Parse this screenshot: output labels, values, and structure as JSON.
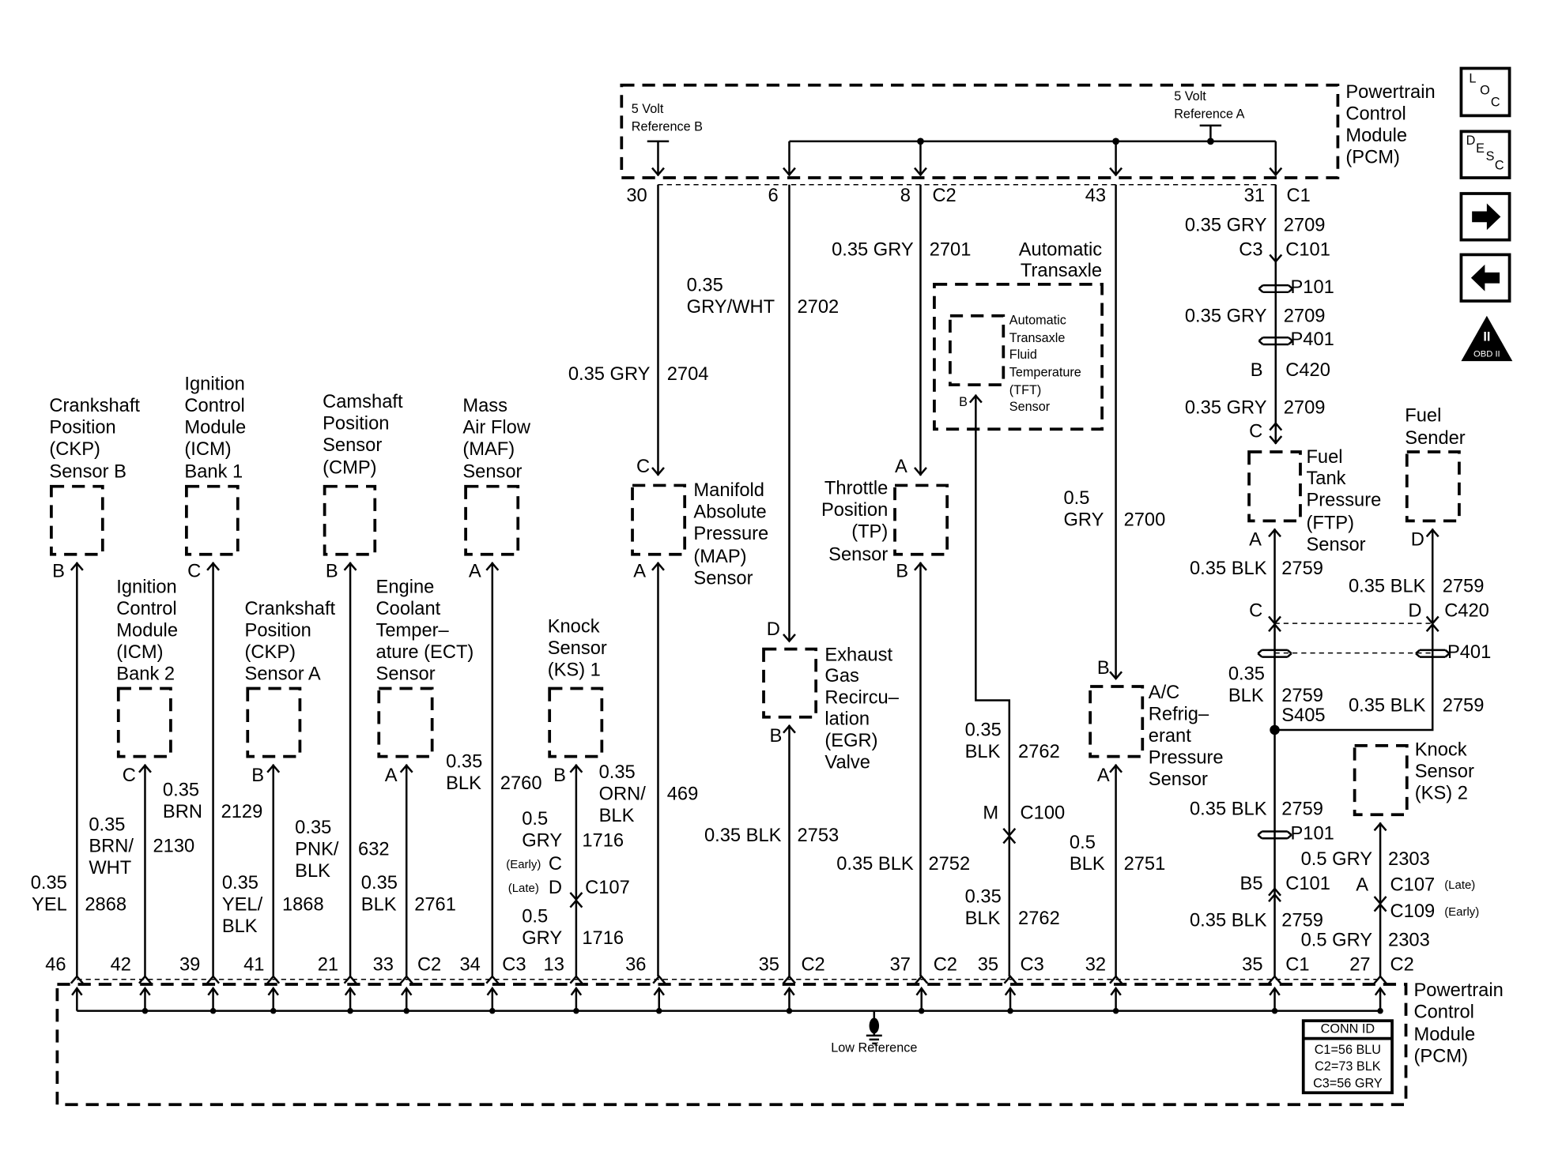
{
  "pcm_top": {
    "l1": "Powertrain",
    "l2": "Control",
    "l3": "Module",
    "l4": "(PCM)",
    "ref_b1": "5 Volt",
    "ref_b2": "Reference B",
    "ref_a1": "5 Volt",
    "ref_a2": "Reference A",
    "pins": [
      "30",
      "6",
      "8",
      "C2",
      "43",
      "31",
      "C1"
    ]
  },
  "pcm_bottom": {
    "l1": "Powertrain",
    "l2": "Control",
    "l3": "Module",
    "l4": "(PCM)",
    "low_reference": "Low Reference",
    "conn_id": {
      "title": "CONN ID",
      "rows": [
        "C1=56 BLU",
        "C2=73 BLK",
        "C3=56 GRY"
      ]
    },
    "pins": [
      "46",
      "42",
      "39",
      "41",
      "21",
      "33",
      "C2",
      "34",
      "C3",
      "13",
      "36",
      "35",
      "C2",
      "37",
      "C2",
      "35",
      "C3",
      "32",
      "35",
      "C1",
      "27",
      "C2"
    ]
  },
  "side_icons": {
    "loc": [
      "L",
      "O",
      "C"
    ],
    "desc": [
      "D",
      "E",
      "S",
      "C"
    ],
    "obd": "OBD II",
    "obd_numeral": "II",
    "names": [
      "location-icon",
      "description-icon",
      "next-arrow-icon",
      "previous-arrow-icon",
      "obd-ii-icon"
    ]
  },
  "components": {
    "ckp_b": {
      "lines": [
        "Crankshaft",
        "Position",
        "(CKP)",
        "Sensor B"
      ],
      "pin": "B",
      "wire": [
        "0.35",
        "YEL",
        "2868"
      ]
    },
    "icm1": {
      "lines": [
        "Ignition",
        "Control",
        "Module",
        "(ICM)",
        "Bank 1"
      ],
      "pin": "C",
      "wire": [
        "0.35",
        "BRN",
        "2129"
      ]
    },
    "icm2": {
      "lines": [
        "Ignition",
        "Control",
        "Module",
        "(ICM)",
        "Bank 2"
      ],
      "pin": "C",
      "wire": [
        "0.35",
        "BRN/",
        "WHT",
        "2130"
      ]
    },
    "cmp": {
      "lines": [
        "Camshaft",
        "Position",
        "Sensor",
        "(CMP)"
      ],
      "pin": "B",
      "wire": [
        "0.35",
        "PNK/",
        "BLK",
        "632"
      ]
    },
    "ckp_a": {
      "lines": [
        "Crankshaft",
        "Position",
        "(CKP)",
        "Sensor A"
      ],
      "pin": "B",
      "wire": [
        "0.35",
        "YEL/",
        "BLK",
        "1868"
      ]
    },
    "ect": {
      "lines": [
        "Engine",
        "Coolant",
        "Temper–",
        "ature (ECT)",
        "Sensor"
      ],
      "pin": "A",
      "wire": [
        "0.35",
        "BLK",
        "2761"
      ]
    },
    "maf": {
      "lines": [
        "Mass",
        "Air Flow",
        "(MAF)",
        "Sensor"
      ],
      "pin": "A",
      "wire": [
        "0.35",
        "BLK",
        "2760"
      ]
    },
    "ks1": {
      "lines": [
        "Knock",
        "Sensor",
        "(KS) 1"
      ],
      "pin": "B",
      "wire_top": [
        "0.5",
        "GRY",
        "1716"
      ],
      "early": "(Early)",
      "early_pin": "C",
      "late": "(Late)",
      "late_pin": "D",
      "connector": "C107",
      "wire_bottom": [
        "0.5",
        "GRY",
        "1716"
      ]
    },
    "map": {
      "lines": [
        "Manifold",
        "Absolute",
        "Pressure",
        "(MAP)",
        "Sensor"
      ],
      "pin_top": "C",
      "pin_bottom": "A",
      "wire_top": [
        "0.35 GRY",
        "2704"
      ],
      "wire_bottom": [
        "0.35",
        "ORN/",
        "BLK",
        "469"
      ]
    },
    "egr": {
      "lines": [
        "Exhaust",
        "Gas",
        "Recircu–",
        "lation",
        "(EGR)",
        "Valve"
      ],
      "pin_top": "D",
      "pin_bottom": "B",
      "wire_top": [
        "0.35",
        "GRY/WHT",
        "2702"
      ],
      "wire_bottom": [
        "0.35 BLK",
        "2753"
      ]
    },
    "tp": {
      "lines": [
        "Throttle",
        "Position",
        "(TP)",
        "Sensor"
      ],
      "pin_top": "A",
      "pin_bottom": "B",
      "wire_top": [
        "0.35 GRY",
        "2701"
      ],
      "wire_bottom": [
        "0.35 BLK",
        "2752"
      ]
    },
    "transaxle": {
      "title": [
        "Automatic",
        "Transaxle"
      ],
      "tft": [
        "Automatic",
        "Transaxle",
        "Fluid",
        "Temperature",
        "(TFT)",
        "Sensor"
      ],
      "pin": "B",
      "wire_top": [
        "0.35",
        "BLK",
        "2762"
      ],
      "conn_pin": "M",
      "connector": "C100",
      "wire_bottom": [
        "0.35",
        "BLK",
        "2762"
      ]
    },
    "ac": {
      "lines": [
        "A/C",
        "Refrig–",
        "erant",
        "Pressure",
        "Sensor"
      ],
      "pin_top": "B",
      "pin_bottom": "A",
      "wire_top": [
        "0.5",
        "GRY",
        "2700"
      ],
      "wire_bottom": [
        "0.5",
        "BLK",
        "2751"
      ]
    },
    "ftp": {
      "lines": [
        "Fuel",
        "Tank",
        "Pressure",
        "(FTP)",
        "Sensor"
      ],
      "pin_top": "C",
      "pin_bottom": "A",
      "wire_top": [
        [
          "0.35 GRY",
          "2709"
        ],
        [
          "0.35 GRY",
          "2709"
        ],
        [
          "0.35 GRY",
          "2709"
        ]
      ],
      "c3": "C3",
      "c101": "C101",
      "p101": "P101",
      "p401": "P401",
      "b": "B",
      "c420": "C420",
      "wire_mid": [
        "0.35 BLK",
        "2759"
      ],
      "c": "C",
      "splice_wire": [
        "0.35",
        "BLK",
        "2759"
      ],
      "splice": "S405",
      "wire_low": [
        "0.35 BLK",
        "2759"
      ],
      "p101_low": "P101",
      "b5": "B5",
      "c101_low": "C101",
      "wire_bottom": [
        "0.35 BLK",
        "2759"
      ]
    },
    "fuel_sender": {
      "lines": [
        "Fuel",
        "Sender"
      ],
      "pin": "D",
      "wire": [
        "0.35 BLK",
        "2759"
      ],
      "conn_pin": "D",
      "connector": "C420",
      "p401": "P401",
      "wire_low": [
        "0.35 BLK",
        "2759"
      ]
    },
    "ks2": {
      "lines": [
        "Knock",
        "Sensor",
        "(KS) 2"
      ],
      "wire_top": [
        "0.5 GRY",
        "2303"
      ],
      "pin": "A",
      "c107": "C107",
      "late": "(Late)",
      "c109": "C109",
      "early": "(Early)",
      "wire_bottom": [
        "0.5 GRY",
        "2303"
      ]
    }
  }
}
